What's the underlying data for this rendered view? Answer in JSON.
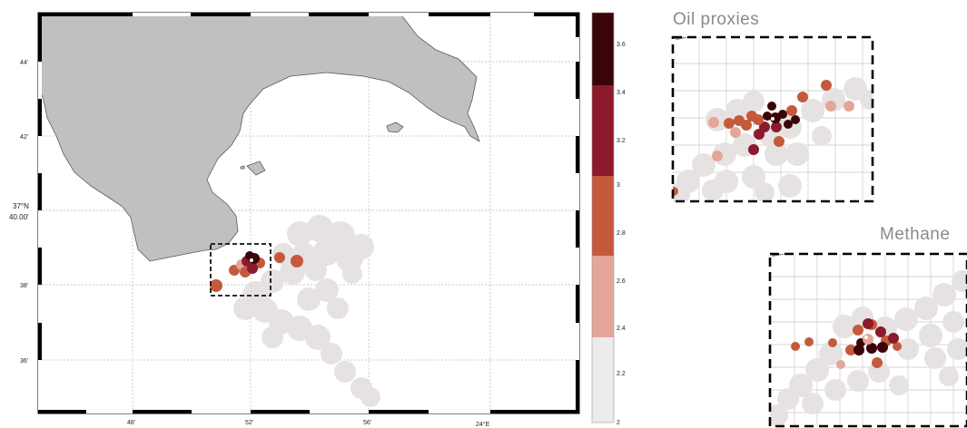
{
  "main_map": {
    "lat_ticks": [
      "44'",
      "42'",
      "38'",
      "36'"
    ],
    "lat_center_label": [
      "37°N",
      "40.00'"
    ],
    "lon_ticks": [
      "48'",
      "52'",
      "56'",
      "24°E"
    ]
  },
  "colorbar": {
    "ticks": [
      "3.6",
      "3.4",
      "3.2",
      "3",
      "2.8",
      "2.6",
      "2.4",
      "2.2",
      "2"
    ],
    "colors": [
      "#3a0508",
      "#8b1a2c",
      "#c45a3c",
      "#e3a698",
      "#ececec"
    ]
  },
  "insets": {
    "oil": {
      "title": "Oil proxies"
    },
    "methane": {
      "title": "Methane"
    }
  },
  "colors": {
    "land": "#c0c0c0",
    "land_stroke": "#5a5a5a",
    "plume": "#e6e2e2"
  }
}
